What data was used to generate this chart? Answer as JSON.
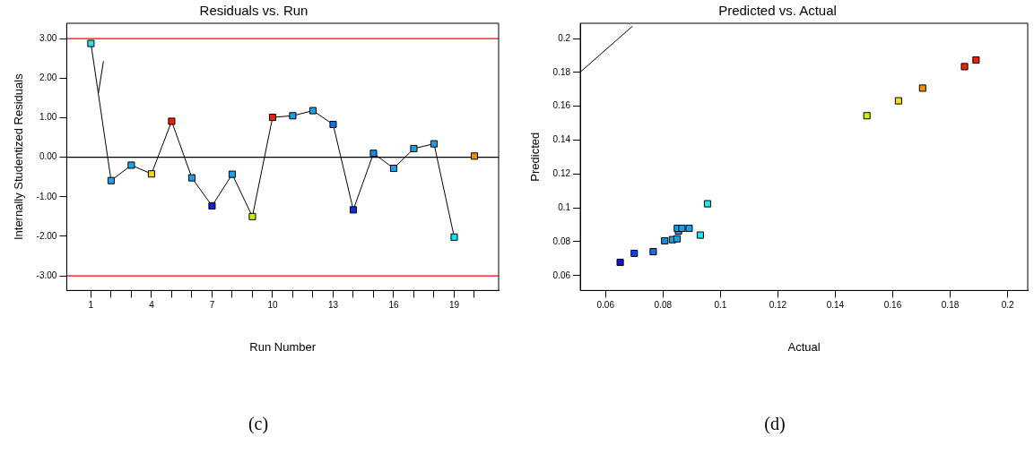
{
  "chart_data": [
    {
      "type": "line",
      "title": "Residuals vs. Run",
      "xlabel": "Run Number",
      "ylabel": "Internally Studentized Residuals",
      "marker": "square",
      "grid": false,
      "legend": false,
      "xlim": [
        -0.2,
        21.2
      ],
      "ylim": [
        -3.37,
        3.39
      ],
      "xticks": [
        1,
        {
          "value": 2,
          "label": null
        },
        {
          "value": 3,
          "label": null
        },
        4,
        {
          "value": 5,
          "label": null
        },
        {
          "value": 6,
          "label": null
        },
        7,
        {
          "value": 8,
          "label": null
        },
        {
          "value": 9,
          "label": null
        },
        10,
        {
          "value": 11,
          "label": null
        },
        {
          "value": 12,
          "label": null
        },
        13,
        {
          "value": 14,
          "label": null
        },
        {
          "value": 15,
          "label": null
        },
        16,
        {
          "value": 17,
          "label": null
        },
        {
          "value": 18,
          "label": null
        },
        19,
        {
          "value": 20,
          "label": null
        }
      ],
      "yticks": [
        {
          "value": -3,
          "label": "-3.00"
        },
        {
          "value": -2,
          "label": "-2.00"
        },
        {
          "value": -1,
          "label": "-1.00"
        },
        {
          "value": 0,
          "label": "0.00"
        },
        {
          "value": 1,
          "label": "1.00"
        },
        {
          "value": 2,
          "label": "2.00"
        },
        {
          "value": 3,
          "label": "3.00"
        }
      ],
      "ref_lines": [
        {
          "axis": "y",
          "value": 3,
          "color": "#ff0000"
        },
        {
          "axis": "y",
          "value": -3,
          "color": "#ff0000"
        },
        {
          "axis": "y",
          "value": 0,
          "color": "#000000"
        }
      ],
      "series": [
        {
          "color": "#000000",
          "x": [
            1,
            2,
            3,
            4,
            5,
            6,
            7,
            8,
            9,
            10,
            11,
            12,
            13,
            14,
            15,
            16,
            17,
            18,
            19
          ],
          "values": [
            2.88,
            -0.59,
            -0.2,
            -0.42,
            0.91,
            -0.52,
            -1.23,
            -0.43,
            -1.5,
            1.01,
            1.05,
            1.18,
            0.83,
            -1.33,
            0.1,
            -0.28,
            0.22,
            0.34,
            -2.02
          ],
          "colors": [
            "#40d8e8",
            "#1ea0e6",
            "#1ea0e6",
            "#f0d800",
            "#ee2200",
            "#1ea0e6",
            "#1020d0",
            "#1ea0e6",
            "#ccee00",
            "#ee2200",
            "#1ea0e6",
            "#1ea0e6",
            "#1a6ee0",
            "#1030e0",
            "#1a8ae6",
            "#1ea0e6",
            "#1ea0e6",
            "#1ea0e6",
            "#00e8f0"
          ]
        },
        {
          "type": "scatter",
          "color": "#f09000",
          "x": [
            20
          ],
          "values": [
            0.03
          ]
        },
        {
          "color": "#000000",
          "marker": "none",
          "x": [
            1.37,
            1.62
          ],
          "values": [
            1.62,
            2.43
          ]
        }
      ],
      "annotations": [
        "(c)"
      ]
    },
    {
      "type": "scatter",
      "title": "Predicted vs. Actual",
      "xlabel": "Actual",
      "ylabel": "Predicted",
      "marker": "square",
      "grid": false,
      "legend": false,
      "xlim": [
        0.0512,
        0.207
      ],
      "ylim": [
        0.0512,
        0.209
      ],
      "xticks": [
        0.06,
        0.08,
        0.1,
        0.12,
        0.14,
        0.16,
        0.18,
        0.2
      ],
      "yticks": [
        0.06,
        0.08,
        0.1,
        0.12,
        0.14,
        0.16,
        0.18,
        0.2
      ],
      "series": [
        {
          "color": "#1ea0e6",
          "x": [
            0.0651,
            0.07,
            0.0766,
            0.0806,
            0.0833,
            0.0849,
            0.0854,
            0.085,
            0.0866,
            0.0891,
            0.093,
            0.0955,
            0.151,
            0.162,
            0.1704,
            0.185,
            0.189
          ],
          "values": [
            0.0678,
            0.0731,
            0.0741,
            0.0805,
            0.0812,
            0.0817,
            0.0863,
            0.0879,
            0.0879,
            0.0879,
            0.0839,
            0.1024,
            0.1544,
            0.1632,
            0.1707,
            0.1834,
            0.1873
          ],
          "colors": [
            "#1010e0",
            "#1040e8",
            "#1a6ee0",
            "#1a8ae6",
            "#1ea0e6",
            "#1ea0e6",
            "#1ea0e6",
            "#1ea0e6",
            "#1ea0e6",
            "#1ea0e6",
            "#20e8f0",
            "#20e8f0",
            "#ccee00",
            "#f0e000",
            "#f09000",
            "#ee2200",
            "#ee2200"
          ]
        },
        {
          "type": "line",
          "color": "#000000",
          "marker": "none",
          "x": [
            0.0512,
            0.0694
          ],
          "values": [
            0.1802,
            0.2073
          ]
        }
      ],
      "annotations": [
        "(d)"
      ]
    }
  ]
}
